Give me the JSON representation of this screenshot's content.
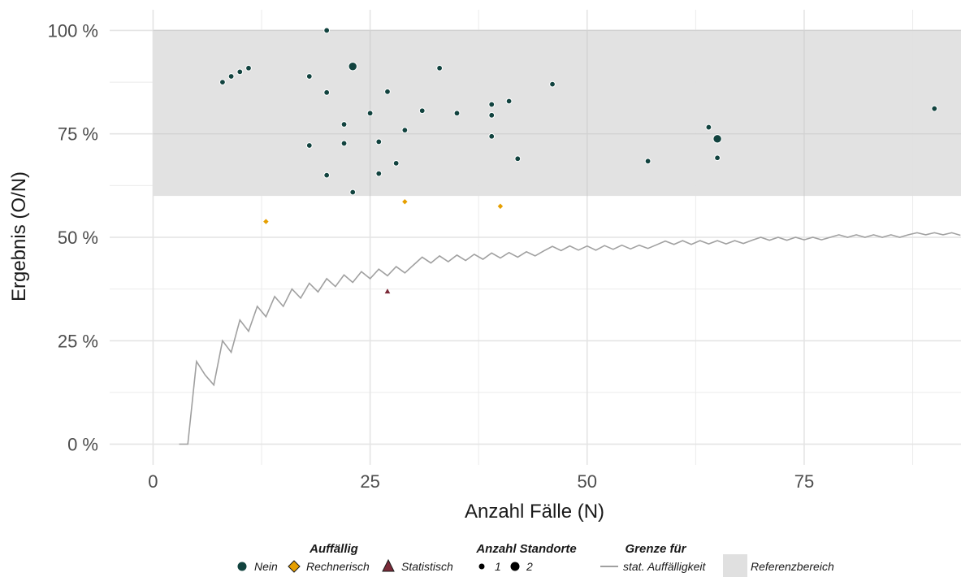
{
  "chart_data": {
    "type": "scatter",
    "xlabel": "Anzahl Fälle (N)",
    "ylabel": "Ergebnis (O/N)",
    "xlim": [
      -5,
      94
    ],
    "ylim": [
      -5,
      105
    ],
    "x_ticks": [
      0,
      25,
      50,
      75
    ],
    "x_tick_labels": [
      "0",
      "25",
      "50",
      "75"
    ],
    "y_ticks": [
      0,
      25,
      50,
      75,
      100
    ],
    "y_tick_labels": [
      "0 %",
      "25 %",
      "50 %",
      "75 %",
      "100 %"
    ],
    "grid": true,
    "legend_position": "bottom",
    "colors": {
      "Nein": "#12433f",
      "Rechnerisch": "#e69f00",
      "Statistisch": "#7b2a38",
      "line": "#a0a0a0",
      "band": "#e0e0e0"
    },
    "reference_range": {
      "name": "Referenzbereich",
      "y": [
        60,
        100
      ]
    },
    "limit_line": {
      "name": "stat. Auffälligkeit",
      "x": [
        3,
        4,
        5,
        6,
        7,
        8,
        9,
        10,
        11,
        12,
        13,
        14,
        15,
        16,
        17,
        18,
        19,
        20,
        21,
        22,
        23,
        24,
        25,
        26,
        27,
        28,
        29,
        30,
        31,
        32,
        33,
        34,
        35,
        36,
        37,
        38,
        39,
        40,
        41,
        42,
        43,
        44,
        45,
        46,
        47,
        48,
        49,
        50,
        51,
        52,
        53,
        54,
        55,
        56,
        57,
        58,
        59,
        60,
        61,
        62,
        63,
        64,
        65,
        66,
        67,
        68,
        69,
        70,
        71,
        72,
        73,
        74,
        75,
        76,
        77,
        78,
        79,
        80,
        81,
        82,
        83,
        84,
        85,
        86,
        87,
        88,
        89,
        90,
        91,
        92,
        93
      ],
      "y": [
        0,
        0,
        20,
        16.7,
        14.3,
        25,
        22.2,
        30,
        27.3,
        33.3,
        30.8,
        35.7,
        33.3,
        37.5,
        35.3,
        38.9,
        36.8,
        40,
        38.1,
        40.9,
        39.1,
        41.7,
        40,
        42.3,
        40.7,
        42.9,
        41.4,
        43.3,
        45.2,
        43.8,
        45.5,
        44.1,
        45.7,
        44.4,
        45.9,
        44.7,
        46.2,
        45,
        46.3,
        45.2,
        46.5,
        45.5,
        46.7,
        47.8,
        46.8,
        47.9,
        46.9,
        47.9,
        46.9,
        48,
        47.1,
        48.1,
        47.2,
        48.1,
        47.3,
        48.2,
        49.1,
        48.3,
        49.2,
        48.3,
        49.2,
        48.4,
        49.2,
        48.4,
        49.2,
        48.5,
        49.3,
        50,
        49.3,
        50,
        49.3,
        50,
        49.4,
        50,
        49.4,
        50,
        50.6,
        50,
        50.6,
        50,
        50.6,
        50,
        50.6,
        50,
        50.6,
        51.1,
        50.6,
        51.1,
        50.6,
        51.1,
        50.5
      ]
    },
    "series": [
      {
        "name": "Nein",
        "points": [
          {
            "x": 8,
            "y": 87.5,
            "n": 1
          },
          {
            "x": 9,
            "y": 88.9,
            "n": 1
          },
          {
            "x": 10,
            "y": 90,
            "n": 1
          },
          {
            "x": 11,
            "y": 90.9,
            "n": 1
          },
          {
            "x": 18,
            "y": 88.9,
            "n": 1
          },
          {
            "x": 18,
            "y": 72.2,
            "n": 1
          },
          {
            "x": 20,
            "y": 100,
            "n": 1
          },
          {
            "x": 20,
            "y": 85,
            "n": 1
          },
          {
            "x": 20,
            "y": 65,
            "n": 1
          },
          {
            "x": 22,
            "y": 77.3,
            "n": 1
          },
          {
            "x": 22,
            "y": 72.7,
            "n": 1
          },
          {
            "x": 23,
            "y": 91.3,
            "n": 2
          },
          {
            "x": 23,
            "y": 60.9,
            "n": 1
          },
          {
            "x": 25,
            "y": 80,
            "n": 1
          },
          {
            "x": 26,
            "y": 73.1,
            "n": 1
          },
          {
            "x": 26,
            "y": 65.4,
            "n": 1
          },
          {
            "x": 27,
            "y": 85.2,
            "n": 1
          },
          {
            "x": 28,
            "y": 67.9,
            "n": 1
          },
          {
            "x": 29,
            "y": 75.9,
            "n": 1
          },
          {
            "x": 31,
            "y": 80.6,
            "n": 1
          },
          {
            "x": 33,
            "y": 90.9,
            "n": 1
          },
          {
            "x": 35,
            "y": 80,
            "n": 1
          },
          {
            "x": 39,
            "y": 82.1,
            "n": 1
          },
          {
            "x": 39,
            "y": 79.5,
            "n": 1
          },
          {
            "x": 39,
            "y": 74.4,
            "n": 1
          },
          {
            "x": 41,
            "y": 82.9,
            "n": 1
          },
          {
            "x": 42,
            "y": 69,
            "n": 1
          },
          {
            "x": 46,
            "y": 87,
            "n": 1
          },
          {
            "x": 57,
            "y": 68.4,
            "n": 1
          },
          {
            "x": 64,
            "y": 76.6,
            "n": 1
          },
          {
            "x": 65,
            "y": 73.8,
            "n": 2
          },
          {
            "x": 65,
            "y": 69.2,
            "n": 1
          },
          {
            "x": 90,
            "y": 81.1,
            "n": 1
          }
        ]
      },
      {
        "name": "Rechnerisch",
        "points": [
          {
            "x": 13,
            "y": 53.8,
            "n": 1
          },
          {
            "x": 29,
            "y": 58.6,
            "n": 1
          },
          {
            "x": 40,
            "y": 57.5,
            "n": 1
          }
        ]
      },
      {
        "name": "Statistisch",
        "points": [
          {
            "x": 27,
            "y": 37,
            "n": 1
          }
        ]
      }
    ],
    "legend": {
      "auffaellig_title": "Auffällig",
      "auffaellig_items": [
        "Nein",
        "Rechnerisch",
        "Statistisch"
      ],
      "standorte_title": "Anzahl Standorte",
      "standorte_items": [
        "1",
        "2"
      ],
      "grenze_title": "Grenze für",
      "grenze_item": "stat. Auffälligkeit",
      "band_item": "Referenzbereich"
    }
  }
}
